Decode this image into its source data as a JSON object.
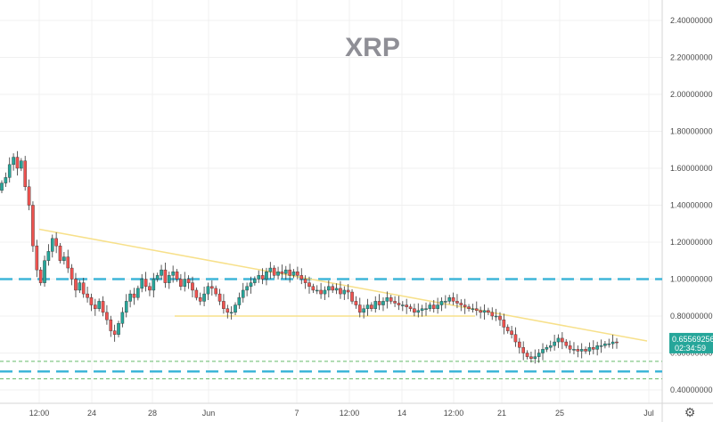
{
  "chart_data": {
    "type": "candlestick",
    "title": "XRP",
    "y_ticks": [
      "2.40000000",
      "2.20000000",
      "2.00000000",
      "1.80000000",
      "1.60000000",
      "1.40000000",
      "1.20000000",
      "1.00000000",
      "0.80000000",
      "0.60000000",
      "0.40000000"
    ],
    "ylim": [
      0.37,
      2.52
    ],
    "x_ticks": [
      "12:00",
      "24",
      "28",
      "Jun",
      "7",
      "12:00",
      "14",
      "12:00",
      "21",
      "25",
      "Jul"
    ],
    "current_price": "0.65569256",
    "countdown": "02:34:59",
    "grid": true,
    "colors": {
      "up": "#26a69a",
      "down": "#ef5350",
      "wick": "#333333",
      "support": "#3fb6d8",
      "trend": "#f7e08a",
      "green_dash": "#66bb6a",
      "price_label": "#26a69a"
    },
    "horizontal_levels": [
      {
        "price": 1.0,
        "style": "long-dash",
        "color": "#3fb6d8"
      },
      {
        "price": 0.5,
        "style": "long-dash",
        "color": "#3fb6d8"
      },
      {
        "price": 0.555,
        "style": "short-dash",
        "color": "#66bb6a"
      },
      {
        "price": 0.46,
        "style": "short-dash",
        "color": "#66bb6a"
      }
    ],
    "closes": [
      1.52,
      1.55,
      1.62,
      1.66,
      1.6,
      1.64,
      1.5,
      1.4,
      1.18,
      1.05,
      0.98,
      1.1,
      1.15,
      1.22,
      1.18,
      1.1,
      1.12,
      1.06,
      1.0,
      0.94,
      0.98,
      0.92,
      0.9,
      0.86,
      0.84,
      0.88,
      0.82,
      0.78,
      0.72,
      0.7,
      0.76,
      0.82,
      0.88,
      0.92,
      0.9,
      0.95,
      1.0,
      0.96,
      0.94,
      1.0,
      1.02,
      1.05,
      0.98,
      1.02,
      1.04,
      1.0,
      0.96,
      1.0,
      0.98,
      0.94,
      0.9,
      0.88,
      0.92,
      0.96,
      0.95,
      0.92,
      0.88,
      0.84,
      0.82,
      0.82,
      0.86,
      0.9,
      0.94,
      0.96,
      0.98,
      1.0,
      1.02,
      1.0,
      1.04,
      1.06,
      1.02,
      1.04,
      1.03,
      1.05,
      1.02,
      1.04,
      1.02,
      1.0,
      0.98,
      0.96,
      0.94,
      0.94,
      0.92,
      0.94,
      0.96,
      0.94,
      0.95,
      0.92,
      0.94,
      0.93,
      0.88,
      0.86,
      0.82,
      0.84,
      0.86,
      0.84,
      0.88,
      0.86,
      0.88,
      0.9,
      0.88,
      0.87,
      0.86,
      0.86,
      0.85,
      0.84,
      0.82,
      0.83,
      0.84,
      0.84,
      0.86,
      0.84,
      0.86,
      0.88,
      0.88,
      0.9,
      0.88,
      0.87,
      0.86,
      0.85,
      0.84,
      0.84,
      0.83,
      0.82,
      0.83,
      0.82,
      0.8,
      0.8,
      0.78,
      0.74,
      0.72,
      0.7,
      0.66,
      0.63,
      0.6,
      0.58,
      0.57,
      0.58,
      0.6,
      0.62,
      0.63,
      0.64,
      0.66,
      0.68,
      0.66,
      0.64,
      0.62,
      0.62,
      0.61,
      0.62,
      0.61,
      0.63,
      0.62,
      0.64,
      0.64,
      0.65,
      0.65,
      0.66,
      0.656
    ]
  },
  "icons": {
    "settings": "settings-gear-icon"
  }
}
